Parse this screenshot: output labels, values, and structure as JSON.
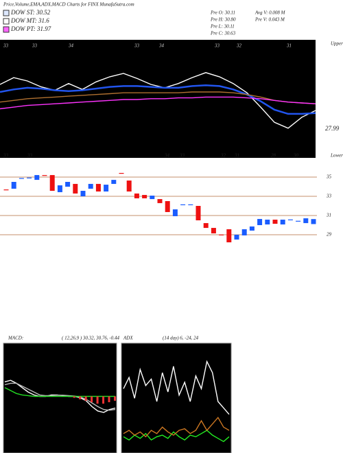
{
  "header": {
    "title": "Price,Volume,EMA,ADX,MACD Charts for FINX  MunafaSutra.com",
    "legend": [
      {
        "label": "DOW ST: 30.52",
        "color": "#dde8ff"
      },
      {
        "label": "DOW MT: 31.6",
        "color": "#ffffff"
      },
      {
        "label": "DOW PT: 31.97",
        "color": "#ff66ff"
      }
    ],
    "info": [
      "Pre  O: 30.11",
      "Pre  H: 30.80",
      "Pre  L: 30.11",
      "Pre  C: 30.63",
      "Avg V: 0.008 M",
      "Pre  V: 0.043 M"
    ]
  },
  "chart_data": [
    {
      "type": "line",
      "date_labels": [
        "33",
        "33",
        "34",
        "33",
        "34",
        "33",
        "32",
        "31"
      ],
      "annotations": [
        "Upper",
        "27.99"
      ],
      "ylim": [
        26,
        37
      ],
      "series": [
        {
          "name": "Price",
          "color": "#ffffff",
          "values": [
            33.5,
            34.3,
            33.9,
            33.2,
            32.8,
            33.6,
            32.9,
            33.8,
            34.4,
            34.8,
            34.2,
            33.5,
            33.1,
            33.6,
            34.3,
            34.9,
            34.4,
            33.6,
            32.5,
            30.8,
            29.0,
            28.3,
            29.6,
            30.4
          ]
        },
        {
          "name": "EMA short",
          "color": "#2255ee",
          "values": [
            32.6,
            32.9,
            33.1,
            33.0,
            32.8,
            32.7,
            32.8,
            33.0,
            33.2,
            33.3,
            33.3,
            33.2,
            33.1,
            33.1,
            33.3,
            33.4,
            33.3,
            32.9,
            32.3,
            31.5,
            30.5,
            30.0,
            30.0,
            30.1
          ]
        },
        {
          "name": "EMA mid",
          "color": "#b07030",
          "values": [
            31.4,
            31.6,
            31.8,
            31.9,
            32.0,
            32.1,
            32.2,
            32.3,
            32.4,
            32.5,
            32.5,
            32.5,
            32.5,
            32.5,
            32.6,
            32.6,
            32.6,
            32.5,
            32.3,
            32.0,
            31.6,
            31.4,
            31.3,
            31.2
          ]
        },
        {
          "name": "EMA long",
          "color": "#ff33ff",
          "values": [
            30.6,
            30.8,
            31.0,
            31.1,
            31.2,
            31.3,
            31.4,
            31.5,
            31.6,
            31.7,
            31.7,
            31.8,
            31.8,
            31.9,
            31.9,
            32.0,
            32.0,
            32.0,
            31.9,
            31.8,
            31.6,
            31.4,
            31.3,
            31.2
          ]
        }
      ]
    },
    {
      "type": "candlestick",
      "date_labels": [
        "33",
        "33",
        "34",
        "33",
        "32",
        "31",
        "28",
        "30"
      ],
      "annotations": [
        "Lower"
      ],
      "ylim": [
        19,
        37
      ],
      "yticks": [
        35,
        33,
        31,
        29
      ],
      "grid": true,
      "up_color": "#1a5cff",
      "down_color": "#ee1111",
      "open": [
        33.71,
        33.79,
        34.86,
        34.93,
        34.71,
        35.21,
        35.21,
        33.43,
        34,
        34.29,
        33,
        33.79,
        34.29,
        33.5,
        34.29,
        35.43,
        34.64,
        33.29,
        33.14,
        32.71,
        32.71,
        32.5,
        30.93,
        32.12,
        32.12,
        32,
        30.21,
        29.71,
        29.02,
        29.57,
        28.5,
        28.93,
        29.43,
        30,
        30.07,
        30.57,
        30.07,
        30.55,
        30.41,
        30.21,
        30.11
      ],
      "close": [
        33.64,
        34.5,
        34.9,
        34.95,
        35.21,
        35.17,
        33.57,
        34.14,
        34.5,
        33.29,
        33.57,
        34.29,
        33.5,
        34.21,
        34.71,
        35.36,
        33.5,
        32.79,
        32.79,
        33.07,
        32.29,
        31.36,
        31.64,
        32.16,
        32.16,
        30.5,
        29.71,
        29.14,
        28.98,
        28.21,
        29,
        29.57,
        29.86,
        30.64,
        30.57,
        30.14,
        30.57,
        30.59,
        30.45,
        30.71,
        30.63
      ]
    },
    {
      "type": "macd",
      "title": "MACD:",
      "subtitle": "( 12,26,9 ) 30.32, 30.76, -0.44",
      "ylim": [
        -2,
        2
      ],
      "series": [
        {
          "name": "MACD",
          "color": "#ffffff",
          "values": [
            1.0,
            1.1,
            0.9,
            0.6,
            0.3,
            0.1,
            0.0,
            0.0,
            0.1,
            0.1,
            0.05,
            0.0,
            0.0,
            -0.1,
            -0.3,
            -0.7,
            -1.0,
            -1.1,
            -0.9,
            -0.8
          ]
        },
        {
          "name": "Signal",
          "color": "#bbbbbb",
          "values": [
            0.8,
            0.9,
            0.9,
            0.7,
            0.5,
            0.3,
            0.1,
            0.05,
            0.05,
            0.08,
            0.08,
            0.05,
            0.02,
            -0.05,
            -0.2,
            -0.45,
            -0.7,
            -0.9,
            -0.95,
            -0.9
          ]
        },
        {
          "name": "Zero",
          "color": "#22dd22",
          "values": [
            0.6,
            0.4,
            0.2,
            0.1,
            0.05,
            0,
            0,
            0,
            0,
            0,
            0,
            0,
            0,
            0,
            0,
            0,
            0,
            0,
            0,
            0
          ]
        }
      ],
      "histogram": [
        0,
        0,
        0,
        0,
        0,
        0,
        0,
        0,
        0,
        0,
        0,
        0,
        -0.1,
        -0.2,
        -0.3,
        -0.4,
        -0.5,
        -0.5,
        -0.4,
        -0.3
      ],
      "hist_color": "#ee3333"
    },
    {
      "type": "adx",
      "title": "ADX",
      "subtitle": "(14 day) 6, -24, 24",
      "ylim": [
        0,
        60
      ],
      "series": [
        {
          "name": "ADX",
          "color": "#ffffff",
          "values": [
            38,
            45,
            32,
            50,
            40,
            44,
            30,
            48,
            36,
            52,
            34,
            42,
            30,
            46,
            38,
            55,
            48,
            30,
            26,
            22
          ]
        },
        {
          "name": "+DI",
          "color": "#22ee22",
          "values": [
            8,
            6,
            9,
            7,
            10,
            6,
            8,
            9,
            7,
            11,
            8,
            6,
            9,
            8,
            10,
            12,
            9,
            7,
            5,
            8
          ]
        },
        {
          "name": "-DI",
          "color": "#cc7722",
          "values": [
            10,
            12,
            9,
            11,
            8,
            12,
            10,
            14,
            11,
            9,
            12,
            13,
            10,
            12,
            18,
            12,
            16,
            20,
            14,
            12
          ]
        }
      ]
    }
  ]
}
